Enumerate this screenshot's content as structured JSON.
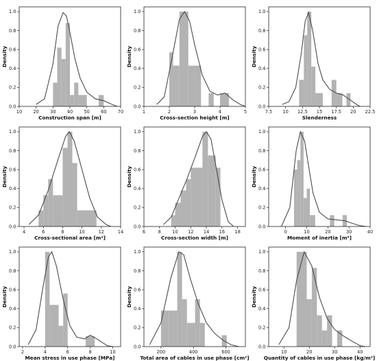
{
  "style": {
    "bar_color": "#b3b3b3",
    "line_color": "#4a4a4a"
  },
  "chart_data": [
    {
      "type": "histogram-kde",
      "xlabel": "Construction span [m]",
      "ylabel": "Density",
      "xlim": [
        10,
        70
      ],
      "ylim": [
        0,
        1.05
      ],
      "xticks": [
        10,
        20,
        30,
        40,
        50,
        60,
        70
      ],
      "yticks": [
        0.0,
        0.2,
        0.4,
        0.6,
        0.8,
        1.0
      ],
      "bins": [
        {
          "x0": 30,
          "x1": 32.5,
          "d": 0.25
        },
        {
          "x0": 32.5,
          "x1": 35,
          "d": 0.62
        },
        {
          "x0": 35,
          "x1": 37.5,
          "d": 0.5
        },
        {
          "x0": 37.5,
          "x1": 40,
          "d": 0.88
        },
        {
          "x0": 40,
          "x1": 42.5,
          "d": 0.12
        },
        {
          "x0": 42.5,
          "x1": 45,
          "d": 0.25
        },
        {
          "x0": 45,
          "x1": 50,
          "d": 0.12
        },
        {
          "x0": 57,
          "x1": 60,
          "d": 0.12
        }
      ],
      "kde": [
        [
          20,
          0.02
        ],
        [
          25,
          0.08
        ],
        [
          30,
          0.45
        ],
        [
          33,
          0.85
        ],
        [
          36,
          0.99
        ],
        [
          38,
          0.95
        ],
        [
          40,
          0.78
        ],
        [
          43,
          0.5
        ],
        [
          46,
          0.3
        ],
        [
          50,
          0.15
        ],
        [
          55,
          0.08
        ],
        [
          60,
          0.06
        ],
        [
          65,
          0.02
        ],
        [
          68,
          0.0
        ]
      ]
    },
    {
      "type": "histogram-kde",
      "xlabel": "Cross-section height [m]",
      "ylabel": "Density",
      "xlim": [
        1,
        5
      ],
      "ylim": [
        0,
        1.05
      ],
      "xticks": [
        1,
        2,
        3,
        4,
        5
      ],
      "yticks": [
        0.0,
        0.2,
        0.4,
        0.6,
        0.8,
        1.0
      ],
      "bins": [
        {
          "x0": 2.0,
          "x1": 2.15,
          "d": 0.57
        },
        {
          "x0": 2.15,
          "x1": 2.4,
          "d": 0.43
        },
        {
          "x0": 2.4,
          "x1": 2.75,
          "d": 1.0
        },
        {
          "x0": 2.75,
          "x1": 3.25,
          "d": 0.43
        },
        {
          "x0": 3.55,
          "x1": 3.75,
          "d": 0.14
        },
        {
          "x0": 4.0,
          "x1": 4.35,
          "d": 0.14
        }
      ],
      "kde": [
        [
          1.5,
          0.02
        ],
        [
          1.8,
          0.1
        ],
        [
          2.1,
          0.5
        ],
        [
          2.4,
          0.92
        ],
        [
          2.6,
          1.0
        ],
        [
          2.8,
          0.9
        ],
        [
          3.0,
          0.65
        ],
        [
          3.3,
          0.33
        ],
        [
          3.6,
          0.16
        ],
        [
          3.9,
          0.12
        ],
        [
          4.2,
          0.14
        ],
        [
          4.5,
          0.07
        ],
        [
          4.8,
          0.02
        ],
        [
          5.0,
          0.0
        ]
      ]
    },
    {
      "type": "histogram-kde",
      "xlabel": "Slenderness",
      "ylabel": "Density",
      "xlim": [
        7.5,
        22.5
      ],
      "ylim": [
        0,
        1.05
      ],
      "xticks": [
        7.5,
        10.0,
        12.5,
        15.0,
        17.5,
        20.0,
        22.5
      ],
      "yticks": [
        0.0,
        0.2,
        0.4,
        0.6,
        0.8,
        1.0
      ],
      "bins": [
        {
          "x0": 12.0,
          "x1": 12.7,
          "d": 0.28
        },
        {
          "x0": 12.7,
          "x1": 13.2,
          "d": 0.75
        },
        {
          "x0": 13.2,
          "x1": 13.8,
          "d": 1.0
        },
        {
          "x0": 13.8,
          "x1": 14.4,
          "d": 0.42
        },
        {
          "x0": 14.4,
          "x1": 15.5,
          "d": 0.14
        },
        {
          "x0": 16.8,
          "x1": 17.5,
          "d": 0.28
        },
        {
          "x0": 17.5,
          "x1": 18.4,
          "d": 0.14
        },
        {
          "x0": 19.0,
          "x1": 19.6,
          "d": 0.14
        }
      ],
      "kde": [
        [
          9.5,
          0.02
        ],
        [
          10.5,
          0.05
        ],
        [
          11.5,
          0.2
        ],
        [
          12.3,
          0.55
        ],
        [
          12.9,
          0.9
        ],
        [
          13.4,
          0.99
        ],
        [
          14.0,
          0.8
        ],
        [
          14.8,
          0.45
        ],
        [
          15.5,
          0.28
        ],
        [
          16.5,
          0.18
        ],
        [
          17.5,
          0.14
        ],
        [
          18.5,
          0.12
        ],
        [
          19.5,
          0.07
        ],
        [
          20.5,
          0.02
        ],
        [
          21.0,
          0.0
        ]
      ]
    },
    {
      "type": "histogram-kde",
      "xlabel": "Cross-sectional area [m²]",
      "ylabel": "Density",
      "xlim": [
        3.5,
        14
      ],
      "ylim": [
        0,
        1.05
      ],
      "xticks": [
        4,
        6,
        8,
        10,
        12,
        14
      ],
      "yticks": [
        0.0,
        0.2,
        0.4,
        0.6,
        0.8,
        1.0
      ],
      "bins": [
        {
          "x0": 5.5,
          "x1": 6.0,
          "d": 0.17
        },
        {
          "x0": 6.0,
          "x1": 6.5,
          "d": 0.33
        },
        {
          "x0": 6.5,
          "x1": 7.0,
          "d": 0.5
        },
        {
          "x0": 7.0,
          "x1": 8.0,
          "d": 0.33
        },
        {
          "x0": 8.0,
          "x1": 8.5,
          "d": 0.83
        },
        {
          "x0": 8.5,
          "x1": 9.0,
          "d": 1.0
        },
        {
          "x0": 9.0,
          "x1": 9.5,
          "d": 0.67
        },
        {
          "x0": 9.5,
          "x1": 11.5,
          "d": 0.17
        }
      ],
      "kde": [
        [
          4.5,
          0.02
        ],
        [
          5.5,
          0.12
        ],
        [
          6.5,
          0.38
        ],
        [
          7.5,
          0.7
        ],
        [
          8.3,
          0.95
        ],
        [
          8.7,
          1.0
        ],
        [
          9.2,
          0.9
        ],
        [
          10.0,
          0.6
        ],
        [
          10.8,
          0.3
        ],
        [
          11.6,
          0.1
        ],
        [
          12.5,
          0.02
        ],
        [
          13.0,
          0.0
        ]
      ]
    },
    {
      "type": "histogram-kde",
      "xlabel": "Cross-section width [m]",
      "ylabel": "Density",
      "xlim": [
        6,
        19
      ],
      "ylim": [
        0,
        1.05
      ],
      "xticks": [
        6,
        8,
        10,
        12,
        14,
        16,
        18
      ],
      "yticks": [
        0.0,
        0.2,
        0.4,
        0.6,
        0.8,
        1.0
      ],
      "bins": [
        {
          "x0": 9.5,
          "x1": 10.0,
          "d": 0.12
        },
        {
          "x0": 10.0,
          "x1": 10.7,
          "d": 0.25
        },
        {
          "x0": 10.7,
          "x1": 11.4,
          "d": 0.38
        },
        {
          "x0": 11.4,
          "x1": 12.0,
          "d": 0.5
        },
        {
          "x0": 12.0,
          "x1": 13.5,
          "d": 0.62
        },
        {
          "x0": 13.5,
          "x1": 14.2,
          "d": 1.0
        },
        {
          "x0": 14.2,
          "x1": 15.2,
          "d": 0.75
        },
        {
          "x0": 15.2,
          "x1": 15.8,
          "d": 0.62
        }
      ],
      "kde": [
        [
          8.5,
          0.02
        ],
        [
          9.5,
          0.1
        ],
        [
          10.5,
          0.3
        ],
        [
          11.5,
          0.5
        ],
        [
          12.5,
          0.72
        ],
        [
          13.5,
          0.95
        ],
        [
          14.0,
          1.0
        ],
        [
          14.6,
          0.92
        ],
        [
          15.3,
          0.6
        ],
        [
          16.0,
          0.28
        ],
        [
          16.8,
          0.05
        ],
        [
          17.5,
          0.0
        ]
      ]
    },
    {
      "type": "histogram-kde",
      "xlabel": "Moment of inertia [m⁴]",
      "ylabel": "Density",
      "xlim": [
        -8,
        40
      ],
      "ylim": [
        0,
        1.05
      ],
      "xticks": [
        0,
        10,
        20,
        30,
        40
      ],
      "yticks": [
        0.0,
        0.2,
        0.4,
        0.6,
        0.8,
        1.0
      ],
      "bins": [
        {
          "x0": 4,
          "x1": 5.5,
          "d": 0.6
        },
        {
          "x0": 5.5,
          "x1": 7.0,
          "d": 0.7
        },
        {
          "x0": 7.0,
          "x1": 8.5,
          "d": 1.0
        },
        {
          "x0": 8.5,
          "x1": 10.0,
          "d": 0.3
        },
        {
          "x0": 10.0,
          "x1": 11.5,
          "d": 0.4
        },
        {
          "x0": 11.5,
          "x1": 14.0,
          "d": 0.12
        },
        {
          "x0": 21.0,
          "x1": 23.0,
          "d": 0.12
        },
        {
          "x0": 27.0,
          "x1": 29.0,
          "d": 0.12
        }
      ],
      "kde": [
        [
          -2,
          0.0
        ],
        [
          2,
          0.2
        ],
        [
          5,
          0.8
        ],
        [
          7,
          1.0
        ],
        [
          9,
          0.9
        ],
        [
          11,
          0.62
        ],
        [
          13,
          0.35
        ],
        [
          16,
          0.15
        ],
        [
          20,
          0.08
        ],
        [
          24,
          0.07
        ],
        [
          28,
          0.06
        ],
        [
          32,
          0.03
        ],
        [
          35,
          0.01
        ],
        [
          38,
          0.0
        ]
      ]
    },
    {
      "type": "histogram-kde",
      "xlabel": "Mean stress in use phase [MPa]",
      "ylabel": "Density",
      "xlim": [
        1.7,
        10.7
      ],
      "ylim": [
        0,
        1.05
      ],
      "xticks": [
        2,
        4,
        6,
        8,
        10
      ],
      "yticks": [
        0.0,
        0.2,
        0.4,
        0.6,
        0.8,
        1.0
      ],
      "bins": [
        {
          "x0": 4.0,
          "x1": 4.4,
          "d": 1.0
        },
        {
          "x0": 4.4,
          "x1": 5.2,
          "d": 0.44
        },
        {
          "x0": 5.2,
          "x1": 5.6,
          "d": 0.22
        },
        {
          "x0": 5.6,
          "x1": 6.0,
          "d": 0.56
        },
        {
          "x0": 7.6,
          "x1": 8.4,
          "d": 0.11
        }
      ],
      "kde": [
        [
          2.5,
          0.02
        ],
        [
          3.2,
          0.18
        ],
        [
          3.8,
          0.62
        ],
        [
          4.3,
          0.95
        ],
        [
          4.6,
          1.0
        ],
        [
          5.0,
          0.85
        ],
        [
          5.6,
          0.5
        ],
        [
          6.2,
          0.22
        ],
        [
          6.8,
          0.1
        ],
        [
          7.5,
          0.08
        ],
        [
          8.0,
          0.12
        ],
        [
          8.6,
          0.08
        ],
        [
          9.5,
          0.01
        ],
        [
          10.0,
          0.0
        ]
      ]
    },
    {
      "type": "histogram-kde",
      "xlabel": "Total area of cables in use phase [cm²]",
      "ylabel": "Density",
      "xlim": [
        95,
        720
      ],
      "ylim": [
        0,
        1.05
      ],
      "xticks": [
        200,
        400,
        600
      ],
      "yticks": [
        0.0,
        0.2,
        0.4,
        0.6,
        0.8,
        1.0
      ],
      "bins": [
        {
          "x0": 200,
          "x1": 250,
          "d": 0.38
        },
        {
          "x0": 250,
          "x1": 300,
          "d": 0.38
        },
        {
          "x0": 300,
          "x1": 330,
          "d": 1.0
        },
        {
          "x0": 330,
          "x1": 360,
          "d": 0.5
        },
        {
          "x0": 360,
          "x1": 410,
          "d": 0.25
        },
        {
          "x0": 410,
          "x1": 440,
          "d": 0.5
        },
        {
          "x0": 440,
          "x1": 470,
          "d": 0.25
        },
        {
          "x0": 575,
          "x1": 605,
          "d": 0.12
        }
      ],
      "kde": [
        [
          130,
          0.02
        ],
        [
          200,
          0.25
        ],
        [
          260,
          0.72
        ],
        [
          310,
          1.0
        ],
        [
          340,
          0.97
        ],
        [
          380,
          0.72
        ],
        [
          430,
          0.45
        ],
        [
          480,
          0.25
        ],
        [
          530,
          0.14
        ],
        [
          580,
          0.07
        ],
        [
          630,
          0.02
        ],
        [
          680,
          0.0
        ]
      ]
    },
    {
      "type": "histogram-kde",
      "xlabel": "Quantity of cables in use phase [kg/m²]",
      "ylabel": "Density",
      "xlim": [
        4,
        44
      ],
      "ylim": [
        0,
        1.05
      ],
      "xticks": [
        10,
        20,
        30,
        40
      ],
      "yticks": [
        0.0,
        0.2,
        0.4,
        0.6,
        0.8,
        1.0
      ],
      "bins": [
        {
          "x0": 15,
          "x1": 19,
          "d": 1.0
        },
        {
          "x0": 19,
          "x1": 21,
          "d": 0.5
        },
        {
          "x0": 21,
          "x1": 23,
          "d": 0.83
        },
        {
          "x0": 23,
          "x1": 25,
          "d": 0.33
        },
        {
          "x0": 25,
          "x1": 27,
          "d": 0.17
        },
        {
          "x0": 27,
          "x1": 29,
          "d": 0.33
        },
        {
          "x0": 31,
          "x1": 33,
          "d": 0.17
        }
      ],
      "kde": [
        [
          8,
          0.02
        ],
        [
          12,
          0.2
        ],
        [
          15,
          0.7
        ],
        [
          18,
          1.0
        ],
        [
          21,
          0.85
        ],
        [
          24,
          0.52
        ],
        [
          27,
          0.3
        ],
        [
          30,
          0.18
        ],
        [
          33,
          0.12
        ],
        [
          36,
          0.07
        ],
        [
          40,
          0.01
        ],
        [
          42,
          0.0
        ]
      ]
    }
  ]
}
